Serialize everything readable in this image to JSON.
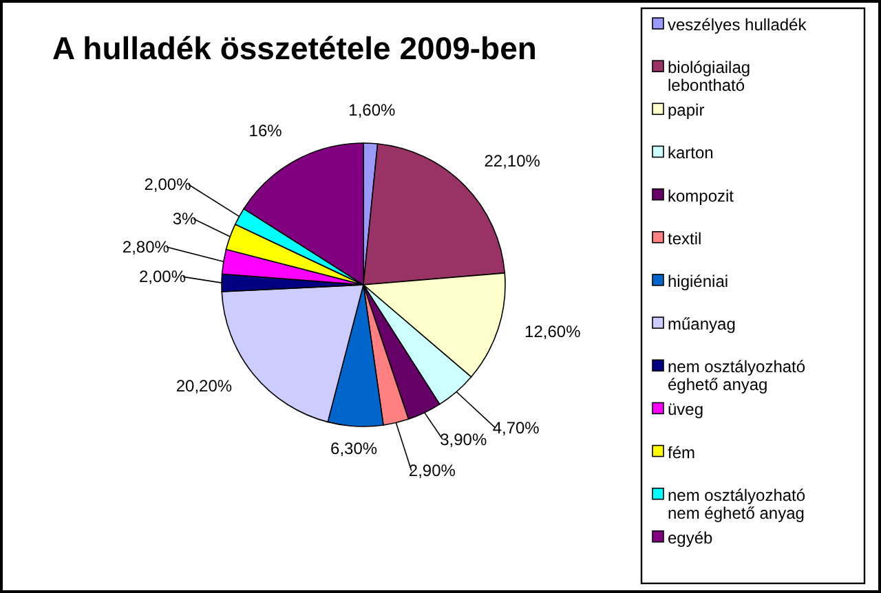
{
  "chart_data": {
    "type": "pie",
    "title": "A hulladék összetétele 2009-ben",
    "categories": [
      "veszélyes hulladék",
      "biológiailag lebontható",
      "papir",
      "karton",
      "kompozit",
      "textil",
      "higiéniai",
      "műanyag",
      "nem osztályozható éghető anyag",
      "üveg",
      "fém",
      "nem osztályozható nem éghető anyag",
      "egyéb"
    ],
    "values": [
      1.6,
      22.1,
      12.6,
      4.7,
      3.9,
      2.9,
      6.3,
      20.2,
      2.0,
      2.8,
      3,
      2.0,
      16
    ],
    "value_labels": [
      "1,60%",
      "22,10%",
      "12,60%",
      "4,70%",
      "3,90%",
      "2,90%",
      "6,30%",
      "20,20%",
      "2,00%",
      "2,80%",
      "3%",
      "2,00%",
      "16%"
    ],
    "colors": [
      "#9999ff",
      "#993366",
      "#ffffcc",
      "#ccffff",
      "#660066",
      "#ff8080",
      "#0066cc",
      "#ccccff",
      "#000080",
      "#ff00ff",
      "#ffff00",
      "#00ffff",
      "#800080"
    ],
    "legend": "right"
  }
}
